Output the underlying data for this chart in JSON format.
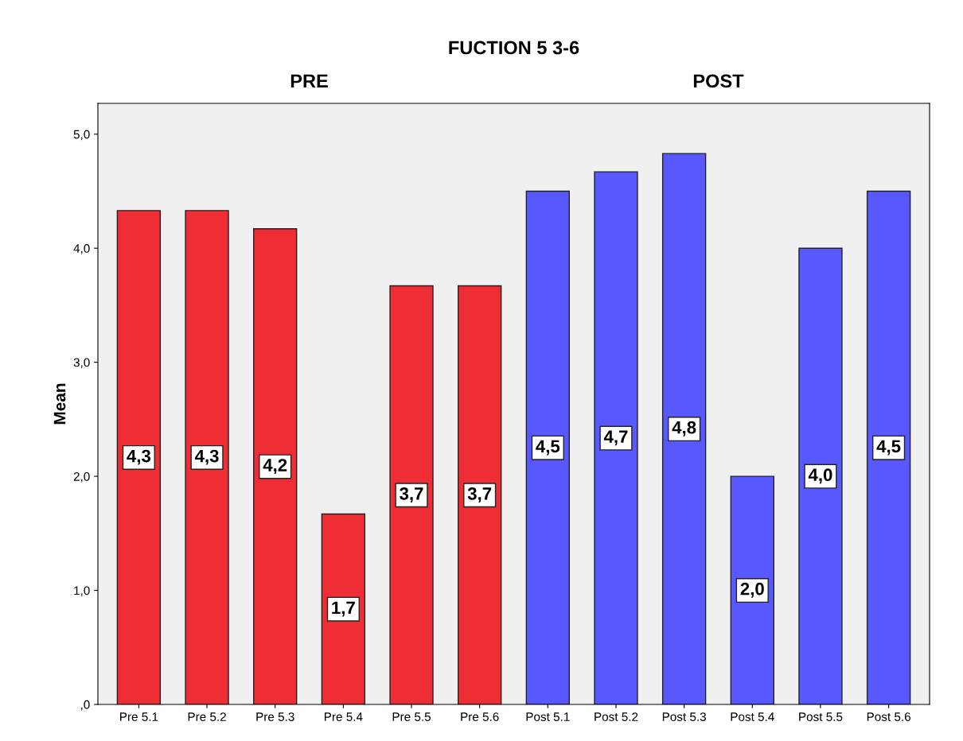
{
  "chart_data": {
    "type": "bar",
    "title": "FUCTION 5 3-6",
    "ylabel": "Mean",
    "categories": [
      "Pre 5.1",
      "Pre 5.2",
      "Pre 5.3",
      "Pre 5.4",
      "Pre 5.5",
      "Pre 5.6",
      "Post 5.1",
      "Post 5.2",
      "Post 5.3",
      "Post 5.4",
      "Post 5.5",
      "Post 5.6"
    ],
    "series": [
      {
        "color": "#ee2e34",
        "values": [
          4.33,
          4.33,
          4.17,
          1.67,
          3.67,
          3.67,
          null,
          null,
          null,
          null,
          null,
          null
        ],
        "value_labels": [
          "4,3",
          "4,3",
          "4,2",
          "1,7",
          "3,7",
          "3,7",
          null,
          null,
          null,
          null,
          null,
          null
        ]
      },
      {
        "color": "#5858ff",
        "values": [
          null,
          null,
          null,
          null,
          null,
          null,
          4.5,
          4.67,
          4.83,
          2.0,
          4.0,
          4.5
        ],
        "value_labels": [
          null,
          null,
          null,
          null,
          null,
          null,
          "4,5",
          "4,7",
          "4,8",
          "2,0",
          "4,0",
          "4,5"
        ]
      }
    ],
    "ylim": [
      0,
      5.27
    ],
    "yticks": [
      {
        "value": 0,
        "label": ",0"
      },
      {
        "value": 1,
        "label": "1,0"
      },
      {
        "value": 2,
        "label": "2,0"
      },
      {
        "value": 3,
        "label": "3,0"
      },
      {
        "value": 4,
        "label": "4,0"
      },
      {
        "value": 5,
        "label": "5,0"
      }
    ],
    "annotations": [
      "PRE",
      "POST"
    ],
    "grid": false,
    "legend": false
  }
}
